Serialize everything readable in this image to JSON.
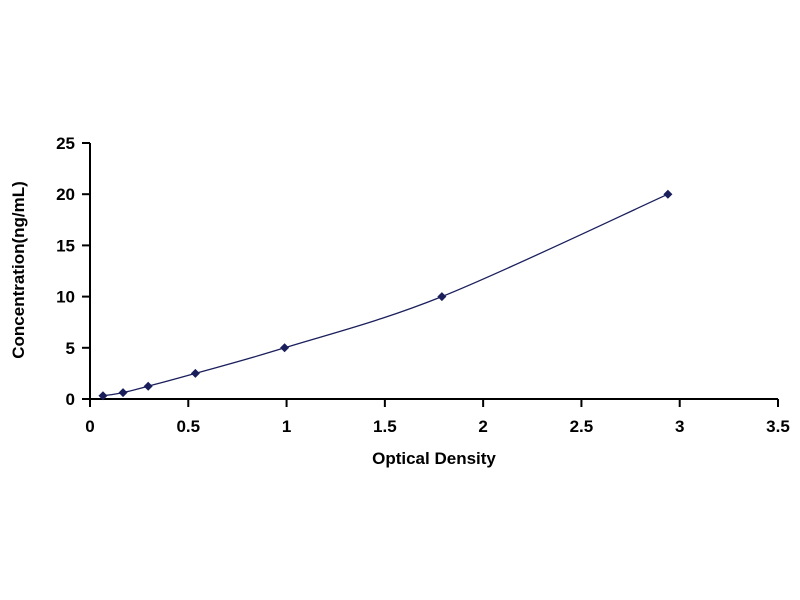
{
  "chart_data": {
    "type": "line",
    "title": "",
    "xlabel": "Optical Density",
    "ylabel": "Concentration(ng/mL)",
    "xlim": [
      0,
      3.5
    ],
    "ylim": [
      0,
      25
    ],
    "xticks": [
      "0",
      "0.5",
      "1",
      "1.5",
      "2",
      "2.5",
      "3",
      "3.5"
    ],
    "yticks": [
      "0",
      "5",
      "10",
      "15",
      "20",
      "25"
    ],
    "grid": false,
    "marker": "diamond",
    "series_color": "#1a1f5c",
    "series": [
      {
        "x": [
          0.066,
          0.168,
          0.296,
          0.536,
          0.99,
          1.79,
          2.94
        ],
        "y": [
          0.312,
          0.625,
          1.25,
          2.5,
          5,
          10,
          20
        ]
      }
    ]
  }
}
